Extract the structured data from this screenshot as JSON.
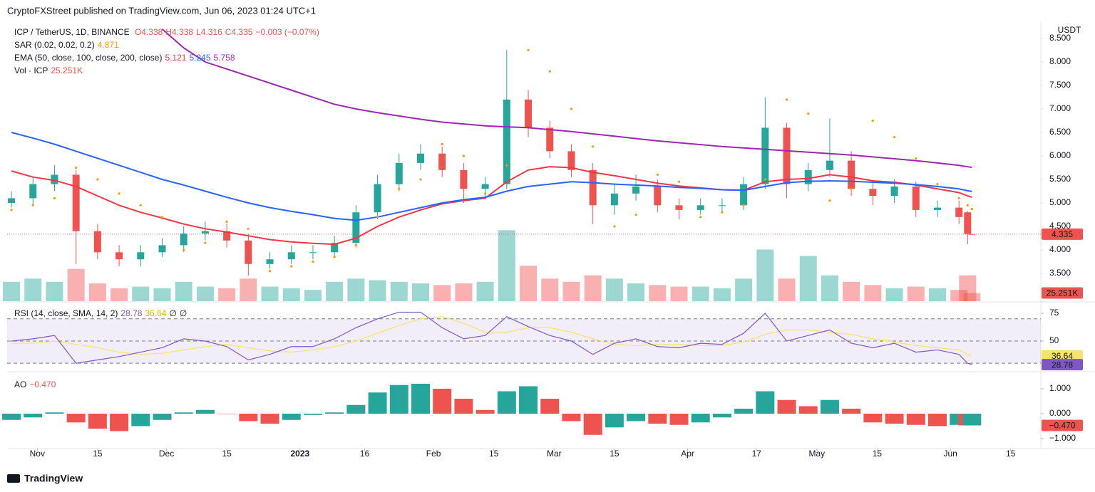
{
  "header": {
    "publisher": "CryptoFXStreet published on TradingView.com, Jun 06, 2023 01:24 UTC+1"
  },
  "legend": {
    "symbol": "ICP / TetherUS, 1D, BINANCE",
    "ohlc": [
      "O4.338",
      "H4.338",
      "L4.316",
      "C4.335",
      "−0.003 (−0.07%)"
    ],
    "sar": "SAR (0.02, 0.02, 0.2)",
    "sar_value": "4.871",
    "ema": "EMA (50, close, 100, close, 200, close)",
    "ema_values": [
      "5.121",
      "5.245",
      "5.758"
    ],
    "vol": "Vol · ICP",
    "vol_value": "25.251K",
    "rsi": "RSI (14, close, SMA, 14, 2)",
    "rsi_values": [
      "28.78",
      "36.64",
      "∅",
      "∅"
    ],
    "ao": "AO",
    "ao_value": "−0.470"
  },
  "currency": "USDT",
  "footer": "TradingView",
  "chart_data": {
    "type": "candlestick",
    "x": [
      -6,
      -1,
      4,
      9,
      14,
      19,
      24,
      29,
      34,
      39,
      44,
      49,
      54,
      59,
      64,
      69,
      74,
      79,
      84,
      89,
      94,
      99,
      104,
      109,
      114,
      119,
      124,
      129,
      134,
      139,
      144,
      149,
      154,
      159,
      164,
      169,
      174,
      179,
      184,
      189,
      194,
      199,
      204,
      209,
      214,
      216,
      217
    ],
    "xlim": [
      -7,
      233
    ],
    "xticks": [
      {
        "value": 0,
        "label": "Nov"
      },
      {
        "value": 14,
        "label": "15"
      },
      {
        "value": 30,
        "label": "Dec"
      },
      {
        "value": 44,
        "label": "15"
      },
      {
        "value": 61,
        "label": "2023"
      },
      {
        "value": 76,
        "label": "16"
      },
      {
        "value": 92,
        "label": "Feb"
      },
      {
        "value": 106,
        "label": "15"
      },
      {
        "value": 120,
        "label": "Mar"
      },
      {
        "value": 134,
        "label": "15"
      },
      {
        "value": 151,
        "label": "Apr"
      },
      {
        "value": 167,
        "label": "17"
      },
      {
        "value": 181,
        "label": "May"
      },
      {
        "value": 195,
        "label": "15"
      },
      {
        "value": 212,
        "label": "Jun"
      },
      {
        "value": 226,
        "label": "15"
      }
    ],
    "open": [
      5.0,
      5.1,
      5.4,
      5.6,
      4.4,
      3.95,
      3.8,
      3.95,
      4.1,
      4.35,
      4.4,
      4.2,
      3.7,
      3.8,
      3.95,
      3.95,
      4.15,
      4.8,
      5.4,
      5.85,
      6.05,
      5.7,
      5.3,
      5.4,
      7.2,
      6.6,
      6.1,
      5.7,
      4.95,
      5.2,
      5.35,
      4.95,
      4.85,
      4.95,
      4.95,
      5.4,
      6.6,
      5.4,
      5.7,
      5.9,
      5.3,
      5.15,
      5.35,
      4.85,
      4.9,
      4.8,
      4.338
    ],
    "high": [
      5.25,
      5.55,
      5.8,
      5.7,
      4.55,
      4.1,
      4.1,
      4.25,
      4.5,
      4.6,
      4.55,
      4.35,
      3.95,
      4.1,
      4.1,
      4.3,
      4.95,
      5.6,
      6.05,
      6.25,
      6.2,
      5.85,
      5.55,
      8.25,
      7.4,
      6.75,
      6.25,
      5.85,
      5.4,
      5.6,
      5.5,
      5.1,
      5.1,
      5.1,
      5.55,
      7.25,
      6.7,
      5.85,
      6.8,
      6.1,
      5.45,
      5.5,
      5.45,
      5.05,
      5.05,
      4.83,
      4.338
    ],
    "low": [
      4.9,
      4.95,
      5.25,
      3.7,
      3.8,
      3.65,
      3.65,
      3.85,
      3.95,
      4.2,
      4.05,
      3.45,
      3.6,
      3.7,
      3.8,
      3.85,
      4.05,
      4.65,
      5.25,
      5.7,
      5.55,
      5.0,
      5.1,
      5.3,
      6.4,
      5.95,
      5.55,
      4.55,
      4.75,
      5.05,
      4.8,
      4.65,
      4.75,
      4.8,
      4.85,
      5.3,
      5.1,
      5.25,
      5.55,
      5.15,
      4.95,
      5.0,
      4.7,
      4.7,
      4.55,
      4.12,
      4.316
    ],
    "close": [
      5.1,
      5.4,
      5.6,
      4.4,
      3.95,
      3.8,
      3.95,
      4.1,
      4.35,
      4.4,
      4.2,
      3.7,
      3.8,
      3.95,
      3.95,
      4.15,
      4.8,
      5.4,
      5.85,
      6.05,
      5.7,
      5.3,
      5.4,
      7.2,
      6.6,
      6.1,
      5.7,
      4.95,
      5.2,
      5.35,
      4.95,
      4.85,
      4.95,
      4.95,
      5.4,
      6.6,
      5.4,
      5.7,
      5.9,
      5.3,
      5.15,
      5.35,
      4.85,
      4.9,
      4.7,
      4.34,
      4.335
    ],
    "up_color": "#26a69a",
    "down_color": "#ef5350",
    "ylim": [
      2.909,
      8.864
    ],
    "yticks": [
      {
        "value": 3.5,
        "label": "3.500"
      },
      {
        "value": 4,
        "label": "4.000"
      },
      {
        "value": 4.5,
        "label": "4.500"
      },
      {
        "value": 5,
        "label": "5.000"
      },
      {
        "value": 5.5,
        "label": "5.500"
      },
      {
        "value": 6,
        "label": "6.000"
      },
      {
        "value": 6.5,
        "label": "6.500"
      },
      {
        "value": 7,
        "label": "7.000"
      },
      {
        "value": 7.5,
        "label": "7.500"
      },
      {
        "value": 8,
        "label": "8.000"
      },
      {
        "value": 8.5,
        "label": "8.500"
      }
    ],
    "grid": false,
    "series": [
      {
        "color": "#f23645",
        "values": [
          5.68,
          5.55,
          5.48,
          5.35,
          5.15,
          4.95,
          4.8,
          4.68,
          4.55,
          4.45,
          4.38,
          4.3,
          4.22,
          4.17,
          4.14,
          4.12,
          4.25,
          4.5,
          4.7,
          4.85,
          4.98,
          5.05,
          5.1,
          5.45,
          5.7,
          5.77,
          5.75,
          5.65,
          5.58,
          5.5,
          5.42,
          5.36,
          5.32,
          5.28,
          5.27,
          5.45,
          5.5,
          5.52,
          5.6,
          5.55,
          5.47,
          5.44,
          5.38,
          5.3,
          5.22,
          5.15,
          5.121
        ]
      },
      {
        "color": "#2962ff",
        "values": [
          6.5,
          6.38,
          6.25,
          6.1,
          5.95,
          5.8,
          5.65,
          5.5,
          5.38,
          5.25,
          5.12,
          5.0,
          4.9,
          4.82,
          4.75,
          4.67,
          4.63,
          4.7,
          4.8,
          4.9,
          5.0,
          5.07,
          5.12,
          5.25,
          5.35,
          5.4,
          5.45,
          5.43,
          5.4,
          5.38,
          5.36,
          5.33,
          5.31,
          5.28,
          5.27,
          5.35,
          5.43,
          5.46,
          5.47,
          5.46,
          5.44,
          5.42,
          5.39,
          5.35,
          5.3,
          5.26,
          5.245
        ]
      },
      {
        "color": "#9c27b0",
        "values": [
          null,
          null,
          null,
          null,
          null,
          null,
          null,
          8.7,
          8.3,
          8.0,
          7.85,
          7.7,
          7.55,
          7.4,
          7.25,
          7.1,
          7.0,
          6.92,
          6.85,
          6.78,
          6.72,
          6.68,
          6.64,
          6.62,
          6.6,
          6.56,
          6.52,
          6.47,
          6.42,
          6.37,
          6.32,
          6.28,
          6.24,
          6.2,
          6.17,
          6.14,
          6.11,
          6.08,
          6.05,
          6.02,
          5.98,
          5.94,
          5.9,
          5.85,
          5.8,
          5.77,
          5.758
        ]
      }
    ],
    "sar": {
      "color": "#ff9800",
      "values": [
        4.85,
        4.95,
        5.1,
        5.75,
        5.5,
        5.2,
        4.95,
        4.7,
        4.0,
        4.15,
        4.6,
        4.45,
        3.55,
        3.65,
        3.75,
        3.85,
        4.1,
        4.7,
        5.3,
        5.5,
        6.25,
        6.0,
        5.2,
        5.8,
        8.25,
        7.8,
        7.0,
        6.2,
        4.5,
        4.75,
        5.6,
        5.45,
        4.7,
        4.8,
        4.95,
        5.5,
        7.2,
        6.9,
        5.05,
        5.3,
        6.75,
        6.4,
        5.95,
        5.4,
        5.1,
        4.95,
        4.871
      ]
    },
    "volume": {
      "ylim": [
        0,
        300
      ],
      "values": [
        60,
        70,
        60,
        100,
        55,
        40,
        45,
        40,
        60,
        45,
        40,
        70,
        45,
        40,
        35,
        60,
        70,
        65,
        60,
        55,
        50,
        55,
        60,
        220,
        110,
        70,
        60,
        80,
        70,
        55,
        50,
        45,
        45,
        40,
        70,
        160,
        70,
        140,
        80,
        60,
        50,
        40,
        45,
        40,
        35,
        80,
        25.251
      ]
    },
    "rsi": {
      "color": "#7e57c2",
      "sma_color": "#f7e26b",
      "ylim": [
        23.7,
        82.7
      ],
      "yticks": [
        50,
        75
      ],
      "bands": [
        70,
        50,
        30
      ],
      "values": [
        50,
        52,
        55,
        30,
        33,
        36,
        40,
        44,
        52,
        50,
        45,
        33,
        38,
        45,
        45,
        52,
        62,
        70,
        76,
        76,
        62,
        52,
        55,
        72,
        63,
        55,
        50,
        38,
        48,
        52,
        45,
        44,
        48,
        47,
        57,
        75,
        50,
        55,
        60,
        48,
        44,
        48,
        40,
        42,
        38,
        30,
        28.78
      ],
      "sma": [
        48,
        48,
        50,
        47,
        44,
        40,
        38,
        39,
        42,
        45,
        47,
        44,
        41,
        40,
        42,
        45,
        50,
        57,
        64,
        70,
        72,
        66,
        58,
        58,
        62,
        62,
        58,
        52,
        47,
        46,
        47,
        47,
        46,
        46,
        49,
        56,
        60,
        60,
        58,
        56,
        52,
        49,
        46,
        44,
        42,
        38,
        36.64
      ]
    },
    "ao": {
      "ylim": [
        -1.4,
        1.6
      ],
      "yticks": [
        {
          "value": 1,
          "label": "1.000"
        },
        {
          "value": 0,
          "label": "0.000"
        },
        {
          "value": -1,
          "label": "−1.000"
        }
      ],
      "values": [
        -0.25,
        -0.15,
        0.05,
        -0.35,
        -0.6,
        -0.7,
        -0.5,
        -0.25,
        0.05,
        0.15,
        0.0,
        -0.3,
        -0.4,
        -0.25,
        -0.05,
        0.05,
        0.35,
        0.85,
        1.15,
        1.2,
        1.0,
        0.6,
        0.15,
        0.9,
        1.1,
        0.6,
        -0.3,
        -0.85,
        -0.55,
        -0.3,
        -0.4,
        -0.45,
        -0.35,
        -0.15,
        0.2,
        0.9,
        0.55,
        0.3,
        0.55,
        0.2,
        -0.35,
        -0.4,
        -0.45,
        -0.5,
        -0.45,
        -0.47,
        -0.47
      ]
    },
    "tags": [
      {
        "pane": "price",
        "value": 4.335,
        "label": "4.335",
        "color": "#ef5350"
      },
      {
        "pane": "volume",
        "value": 25.251,
        "label": "25.251K",
        "color": "#ef5350"
      },
      {
        "pane": "rsi",
        "value": 36.64,
        "label": "36.64",
        "color": "#f7e26b"
      },
      {
        "pane": "rsi",
        "value": 28.78,
        "label": "28.78",
        "color": "#7e57c2"
      },
      {
        "pane": "ao",
        "value": -0.47,
        "label": "−0.470",
        "color": "#ef5350"
      }
    ]
  }
}
